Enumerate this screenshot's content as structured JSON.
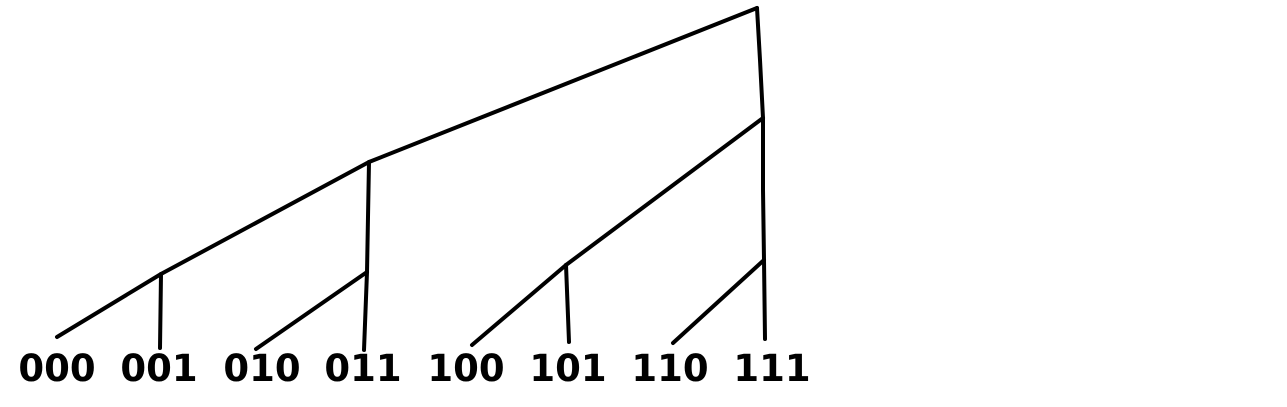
{
  "diagram": {
    "type": "binary-tree",
    "leaves": [
      "000",
      "001",
      "010",
      "011",
      "100",
      "101",
      "110",
      "111"
    ],
    "edges": [
      [
        "root",
        "n_0_01"
      ],
      [
        "root",
        "n_1"
      ],
      [
        "n_0_01",
        "n_00"
      ],
      [
        "n_0_01",
        "n_01"
      ],
      [
        "n_00",
        "000"
      ],
      [
        "n_00",
        "001"
      ],
      [
        "n_01",
        "010"
      ],
      [
        "n_01",
        "011"
      ],
      [
        "n_1",
        "n_10"
      ],
      [
        "n_1",
        "n_11"
      ],
      [
        "n_10",
        "100"
      ],
      [
        "n_10",
        "101"
      ],
      [
        "n_11",
        "110"
      ],
      [
        "n_11",
        "111"
      ]
    ],
    "colors": {
      "line": "#000000",
      "text": "#000000",
      "background": "#ffffff"
    }
  }
}
